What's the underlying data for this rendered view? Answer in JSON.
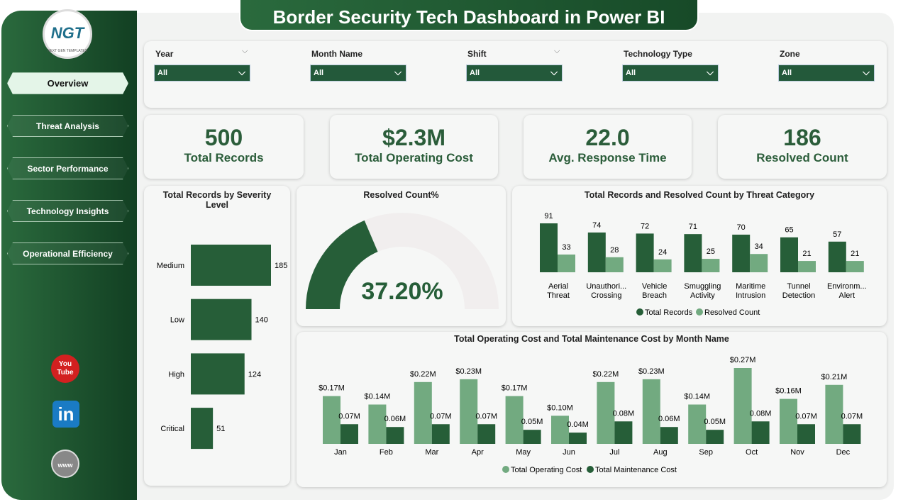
{
  "title": "Border Security Tech Dashboard in Power BI",
  "logo": {
    "text": "NGT",
    "subtext": "NEXT GEN TEMPLATES"
  },
  "nav": [
    {
      "label": "Overview",
      "active": true
    },
    {
      "label": "Threat Analysis"
    },
    {
      "label": "Sector Performance"
    },
    {
      "label": "Technology Insights"
    },
    {
      "label": "Operational Efficiency"
    }
  ],
  "social": [
    {
      "icon": "youtube-icon",
      "label": "You Tube"
    },
    {
      "icon": "linkedin-icon",
      "label": "in"
    },
    {
      "icon": "globe-icon",
      "label": "www"
    }
  ],
  "filters": [
    {
      "label": "Year",
      "value": "All"
    },
    {
      "label": "Month Name",
      "value": "All"
    },
    {
      "label": "Shift",
      "value": "All"
    },
    {
      "label": "Technology Type",
      "value": "All"
    },
    {
      "label": "Zone",
      "value": "All"
    }
  ],
  "kpis": [
    {
      "value": "500",
      "label": "Total Records"
    },
    {
      "value": "$2.3M",
      "label": "Total Operating Cost"
    },
    {
      "value": "22.0",
      "label": "Avg. Response Time"
    },
    {
      "value": "186",
      "label": "Resolved Count"
    }
  ],
  "colors": {
    "dark": "#265e38",
    "light": "#72aa80",
    "track": "#f1eeee"
  },
  "chart_data": [
    {
      "type": "bar",
      "orientation": "horizontal",
      "title": "Total Records by Severity Level",
      "categories": [
        "Medium",
        "Low",
        "High",
        "Critical"
      ],
      "values": [
        185,
        140,
        124,
        51
      ]
    },
    {
      "type": "gauge",
      "title": "Resolved Count%",
      "value": 37.2,
      "label": "37.20%",
      "range": [
        0,
        100
      ]
    },
    {
      "type": "bar",
      "title": "Total Records and Resolved Count by Threat Category",
      "categories": [
        "Aerial Threat",
        "Unauthori... Crossing",
        "Vehicle Breach",
        "Smuggling Activity",
        "Maritime Intrusion",
        "Tunnel Detection",
        "Environm... Alert"
      ],
      "series": [
        {
          "name": "Total Records",
          "values": [
            91,
            74,
            72,
            71,
            70,
            65,
            57
          ]
        },
        {
          "name": "Resolved Count",
          "values": [
            33,
            28,
            24,
            25,
            34,
            21,
            21
          ]
        }
      ],
      "legend": "bottom"
    },
    {
      "type": "bar",
      "title": "Total Operating Cost and Total Maintenance Cost by Month Name",
      "categories": [
        "Jan",
        "Feb",
        "Mar",
        "Apr",
        "May",
        "Jun",
        "Jul",
        "Aug",
        "Sep",
        "Oct",
        "Nov",
        "Dec"
      ],
      "series": [
        {
          "name": "Total Operating Cost",
          "values": [
            0.17,
            0.14,
            0.22,
            0.23,
            0.17,
            0.1,
            0.22,
            0.23,
            0.14,
            0.27,
            0.16,
            0.21
          ],
          "labels": [
            "$0.17M",
            "$0.14M",
            "$0.22M",
            "$0.23M",
            "$0.17M",
            "$0.10M",
            "$0.22M",
            "$0.23M",
            "$0.14M",
            "$0.27M",
            "$0.16M",
            "$0.21M"
          ]
        },
        {
          "name": "Total Maintenance Cost",
          "values": [
            0.07,
            0.06,
            0.07,
            0.07,
            0.05,
            0.04,
            0.08,
            0.06,
            0.05,
            0.08,
            0.07,
            0.07
          ],
          "labels": [
            "0.07M",
            "0.06M",
            "0.07M",
            "0.07M",
            "0.05M",
            "0.04M",
            "0.08M",
            "0.06M",
            "0.05M",
            "0.08M",
            "0.07M",
            "0.07M"
          ]
        }
      ],
      "legend": "bottom"
    }
  ]
}
